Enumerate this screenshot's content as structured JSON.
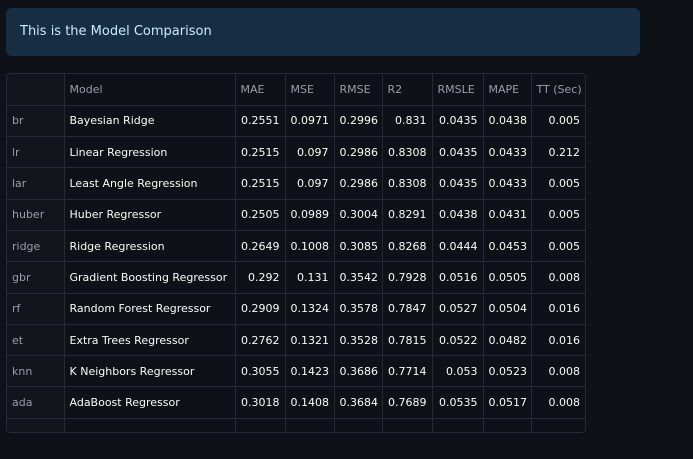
{
  "info": {
    "message": "This is the Model Comparison"
  },
  "table": {
    "headers": [
      "",
      "Model",
      "MAE",
      "MSE",
      "RMSE",
      "R2",
      "RMSLE",
      "MAPE",
      "TT (Sec)"
    ],
    "rows": [
      {
        "index": "br",
        "model": "Bayesian Ridge",
        "mae": "0.2551",
        "mse": "0.0971",
        "rmse": "0.2996",
        "r2": "0.831",
        "rmsle": "0.0435",
        "mape": "0.0438",
        "tt": "0.005"
      },
      {
        "index": "lr",
        "model": "Linear Regression",
        "mae": "0.2515",
        "mse": "0.097",
        "rmse": "0.2986",
        "r2": "0.8308",
        "rmsle": "0.0435",
        "mape": "0.0433",
        "tt": "0.212"
      },
      {
        "index": "lar",
        "model": "Least Angle Regression",
        "mae": "0.2515",
        "mse": "0.097",
        "rmse": "0.2986",
        "r2": "0.8308",
        "rmsle": "0.0435",
        "mape": "0.0433",
        "tt": "0.005"
      },
      {
        "index": "huber",
        "model": "Huber Regressor",
        "mae": "0.2505",
        "mse": "0.0989",
        "rmse": "0.3004",
        "r2": "0.8291",
        "rmsle": "0.0438",
        "mape": "0.0431",
        "tt": "0.005"
      },
      {
        "index": "ridge",
        "model": "Ridge Regression",
        "mae": "0.2649",
        "mse": "0.1008",
        "rmse": "0.3085",
        "r2": "0.8268",
        "rmsle": "0.0444",
        "mape": "0.0453",
        "tt": "0.005"
      },
      {
        "index": "gbr",
        "model": "Gradient Boosting Regressor",
        "mae": "0.292",
        "mse": "0.131",
        "rmse": "0.3542",
        "r2": "0.7928",
        "rmsle": "0.0516",
        "mape": "0.0505",
        "tt": "0.008"
      },
      {
        "index": "rf",
        "model": "Random Forest Regressor",
        "mae": "0.2909",
        "mse": "0.1324",
        "rmse": "0.3578",
        "r2": "0.7847",
        "rmsle": "0.0527",
        "mape": "0.0504",
        "tt": "0.016"
      },
      {
        "index": "et",
        "model": "Extra Trees Regressor",
        "mae": "0.2762",
        "mse": "0.1321",
        "rmse": "0.3528",
        "r2": "0.7815",
        "rmsle": "0.0522",
        "mape": "0.0482",
        "tt": "0.016"
      },
      {
        "index": "knn",
        "model": "K Neighbors Regressor",
        "mae": "0.3055",
        "mse": "0.1423",
        "rmse": "0.3686",
        "r2": "0.7714",
        "rmsle": "0.053",
        "mape": "0.0523",
        "tt": "0.008"
      },
      {
        "index": "ada",
        "model": "AdaBoost Regressor",
        "mae": "0.3018",
        "mse": "0.1408",
        "rmse": "0.3684",
        "r2": "0.7689",
        "rmsle": "0.0535",
        "mape": "0.0517",
        "tt": "0.008"
      }
    ]
  }
}
